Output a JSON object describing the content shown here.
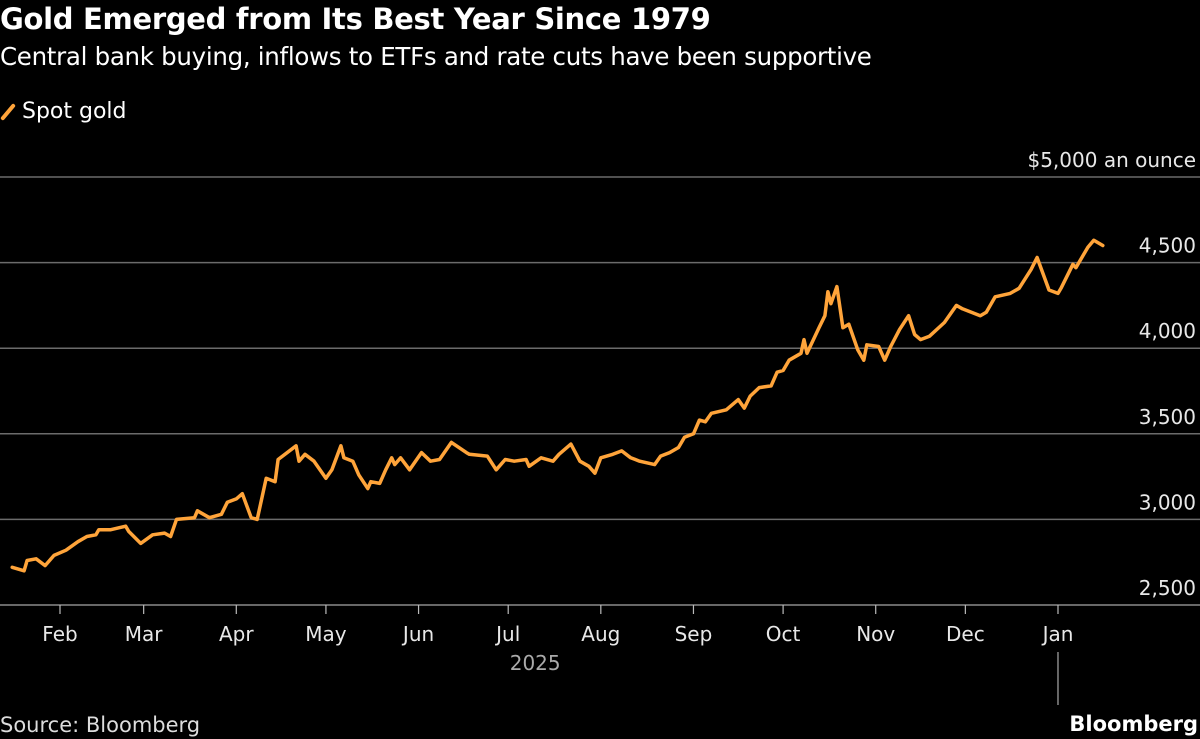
{
  "title": "Gold Emerged from Its Best Year Since 1979",
  "subtitle": "Central bank buying, inflows to ETFs and rate cuts have been supportive",
  "source": "Source: Bloomberg",
  "brand": "Bloomberg",
  "chart_data": {
    "type": "line",
    "title": "Gold Emerged from Its Best Year Since 1979",
    "subtitle": "Central bank buying, inflows to ETFs and rate cuts have been supportive",
    "ylabel": "$5,000 an ounce",
    "ylim": [
      2500,
      5000
    ],
    "yticks": [
      2500,
      3000,
      3500,
      4000,
      4500,
      5000
    ],
    "ytick_labels": [
      "2,500",
      "3,000",
      "3,500",
      "4,000",
      "4,500",
      "$5,000 an ounce"
    ],
    "xticks": [
      "2025-02-01",
      "2025-03-01",
      "2025-04-01",
      "2025-05-01",
      "2025-06-01",
      "2025-07-01",
      "2025-08-01",
      "2025-09-01",
      "2025-10-01",
      "2025-11-01",
      "2025-12-01",
      "2026-01-01"
    ],
    "xtick_labels": [
      "Feb",
      "Mar",
      "Apr",
      "May",
      "Jun",
      "Jul",
      "Aug",
      "Sep",
      "Oct",
      "Nov",
      "Dec",
      "Jan"
    ],
    "year_label": "2025",
    "grid": true,
    "legend_position": "top-left",
    "colors": {
      "line": "#FFA43A",
      "grid": "#6b6b6b",
      "background": "#000000"
    },
    "series": [
      {
        "name": "Spot gold",
        "points": [
          [
            "2025-01-16",
            2720
          ],
          [
            "2025-01-20",
            2700
          ],
          [
            "2025-01-21",
            2760
          ],
          [
            "2025-01-24",
            2770
          ],
          [
            "2025-01-27",
            2730
          ],
          [
            "2025-01-30",
            2790
          ],
          [
            "2025-02-03",
            2820
          ],
          [
            "2025-02-07",
            2870
          ],
          [
            "2025-02-10",
            2900
          ],
          [
            "2025-02-13",
            2910
          ],
          [
            "2025-02-14",
            2940
          ],
          [
            "2025-02-18",
            2940
          ],
          [
            "2025-02-23",
            2960
          ],
          [
            "2025-02-24",
            2930
          ],
          [
            "2025-02-28",
            2860
          ],
          [
            "2025-03-04",
            2910
          ],
          [
            "2025-03-08",
            2920
          ],
          [
            "2025-03-10",
            2900
          ],
          [
            "2025-03-12",
            3000
          ],
          [
            "2025-03-18",
            3010
          ],
          [
            "2025-03-19",
            3050
          ],
          [
            "2025-03-23",
            3010
          ],
          [
            "2025-03-27",
            3030
          ],
          [
            "2025-03-29",
            3100
          ],
          [
            "2025-04-01",
            3120
          ],
          [
            "2025-04-03",
            3150
          ],
          [
            "2025-04-06",
            3010
          ],
          [
            "2025-04-08",
            3000
          ],
          [
            "2025-04-11",
            3240
          ],
          [
            "2025-04-14",
            3220
          ],
          [
            "2025-04-15",
            3350
          ],
          [
            "2025-04-21",
            3430
          ],
          [
            "2025-04-22",
            3340
          ],
          [
            "2025-04-24",
            3380
          ],
          [
            "2025-04-27",
            3340
          ],
          [
            "2025-05-01",
            3240
          ],
          [
            "2025-05-03",
            3290
          ],
          [
            "2025-05-06",
            3430
          ],
          [
            "2025-05-07",
            3360
          ],
          [
            "2025-05-10",
            3340
          ],
          [
            "2025-05-12",
            3260
          ],
          [
            "2025-05-15",
            3180
          ],
          [
            "2025-05-16",
            3220
          ],
          [
            "2025-05-19",
            3210
          ],
          [
            "2025-05-21",
            3290
          ],
          [
            "2025-05-23",
            3360
          ],
          [
            "2025-05-24",
            3320
          ],
          [
            "2025-05-26",
            3360
          ],
          [
            "2025-05-29",
            3290
          ],
          [
            "2025-06-02",
            3390
          ],
          [
            "2025-06-05",
            3340
          ],
          [
            "2025-06-08",
            3350
          ],
          [
            "2025-06-12",
            3450
          ],
          [
            "2025-06-17",
            3390
          ],
          [
            "2025-06-18",
            3380
          ],
          [
            "2025-06-24",
            3370
          ],
          [
            "2025-06-27",
            3290
          ],
          [
            "2025-06-30",
            3350
          ],
          [
            "2025-07-03",
            3340
          ],
          [
            "2025-07-07",
            3350
          ],
          [
            "2025-07-08",
            3310
          ],
          [
            "2025-07-12",
            3360
          ],
          [
            "2025-07-16",
            3340
          ],
          [
            "2025-07-18",
            3380
          ],
          [
            "2025-07-22",
            3440
          ],
          [
            "2025-07-25",
            3340
          ],
          [
            "2025-07-28",
            3310
          ],
          [
            "2025-07-30",
            3270
          ],
          [
            "2025-08-01",
            3360
          ],
          [
            "2025-08-05",
            3380
          ],
          [
            "2025-08-08",
            3400
          ],
          [
            "2025-08-11",
            3360
          ],
          [
            "2025-08-14",
            3340
          ],
          [
            "2025-08-19",
            3320
          ],
          [
            "2025-08-21",
            3370
          ],
          [
            "2025-08-24",
            3390
          ],
          [
            "2025-08-27",
            3420
          ],
          [
            "2025-08-29",
            3480
          ],
          [
            "2025-09-01",
            3500
          ],
          [
            "2025-09-03",
            3580
          ],
          [
            "2025-09-05",
            3570
          ],
          [
            "2025-09-07",
            3620
          ],
          [
            "2025-09-12",
            3640
          ],
          [
            "2025-09-16",
            3700
          ],
          [
            "2025-09-18",
            3650
          ],
          [
            "2025-09-20",
            3720
          ],
          [
            "2025-09-23",
            3770
          ],
          [
            "2025-09-27",
            3780
          ],
          [
            "2025-09-29",
            3860
          ],
          [
            "2025-10-01",
            3870
          ],
          [
            "2025-10-03",
            3930
          ],
          [
            "2025-10-07",
            3970
          ],
          [
            "2025-10-08",
            4050
          ],
          [
            "2025-10-09",
            3970
          ],
          [
            "2025-10-13",
            4120
          ],
          [
            "2025-10-15",
            4190
          ],
          [
            "2025-10-16",
            4330
          ],
          [
            "2025-10-17",
            4260
          ],
          [
            "2025-10-19",
            4360
          ],
          [
            "2025-10-21",
            4120
          ],
          [
            "2025-10-23",
            4140
          ],
          [
            "2025-10-26",
            3990
          ],
          [
            "2025-10-28",
            3930
          ],
          [
            "2025-10-29",
            4020
          ],
          [
            "2025-11-02",
            4010
          ],
          [
            "2025-11-04",
            3930
          ],
          [
            "2025-11-06",
            4010
          ],
          [
            "2025-11-09",
            4110
          ],
          [
            "2025-11-12",
            4190
          ],
          [
            "2025-11-14",
            4080
          ],
          [
            "2025-11-16",
            4050
          ],
          [
            "2025-11-19",
            4070
          ],
          [
            "2025-11-24",
            4150
          ],
          [
            "2025-11-28",
            4250
          ],
          [
            "2025-11-30",
            4230
          ],
          [
            "2025-12-06",
            4190
          ],
          [
            "2025-12-08",
            4210
          ],
          [
            "2025-12-11",
            4300
          ],
          [
            "2025-12-16",
            4320
          ],
          [
            "2025-12-19",
            4350
          ],
          [
            "2025-12-23",
            4460
          ],
          [
            "2025-12-25",
            4530
          ],
          [
            "2025-12-29",
            4340
          ],
          [
            "2026-01-01",
            4320
          ],
          [
            "2026-01-02",
            4350
          ],
          [
            "2026-01-06",
            4490
          ],
          [
            "2026-01-07",
            4470
          ],
          [
            "2026-01-11",
            4590
          ],
          [
            "2026-01-13",
            4630
          ],
          [
            "2026-01-15",
            4610
          ],
          [
            "2026-01-16",
            4600
          ]
        ]
      }
    ]
  }
}
